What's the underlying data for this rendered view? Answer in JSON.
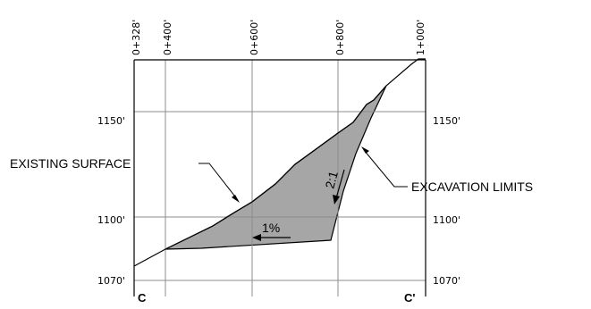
{
  "station_labels": [
    "0+328'",
    "0+400'",
    "0+600'",
    "0+800'",
    "1+000'"
  ],
  "elevation_labels_left": [
    "1150'",
    "1100'",
    "1070'"
  ],
  "elevation_labels_right": [
    "1150'",
    "1100'",
    "1070'"
  ],
  "callouts": {
    "existing_surface": "EXISTING SURFACE",
    "excavation_limits": "EXCAVATION LIMITS"
  },
  "slope_labels": {
    "grade": "1%",
    "side_slope": "2:1"
  },
  "section_labels": {
    "left": "C",
    "right": "C'"
  },
  "colors": {
    "excavation_fill": "#a6a6a6",
    "grid_line": "#8c8c8c",
    "line": "#000000"
  }
}
